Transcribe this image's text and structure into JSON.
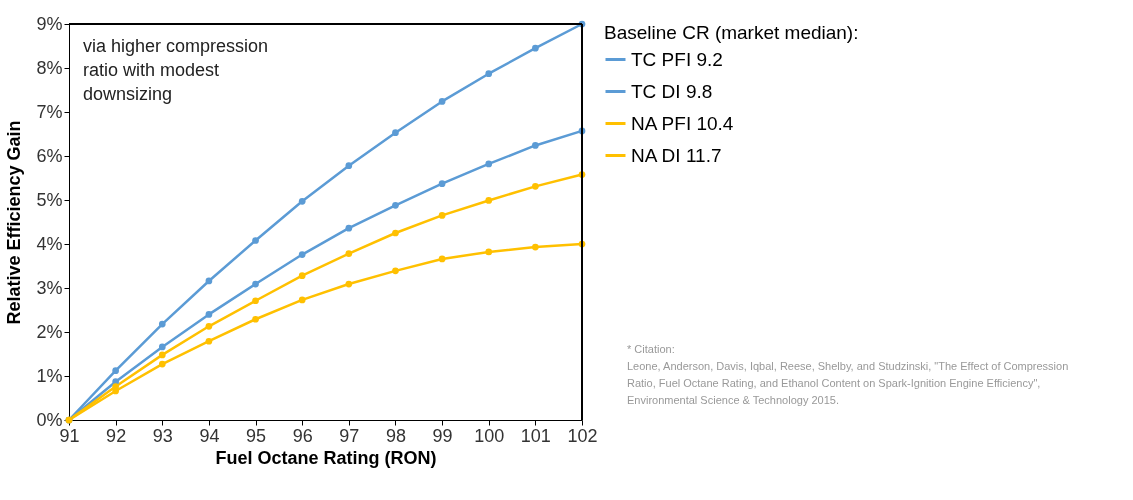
{
  "chart_data": {
    "type": "line",
    "xlabel": "Fuel Octane Rating (RON)",
    "ylabel": "Relative Efficiency Gain",
    "legend_title": "Baseline CR (market median):",
    "x": [
      91,
      92,
      93,
      94,
      95,
      96,
      97,
      98,
      99,
      100,
      101,
      102
    ],
    "series": [
      {
        "name": "TC PFI 9.2",
        "color": "#5b9bd5",
        "values": [
          0,
          1.12,
          2.18,
          3.16,
          4.08,
          4.97,
          5.78,
          6.53,
          7.24,
          7.87,
          8.45,
          9.0
        ]
      },
      {
        "name": "TC DI 9.8",
        "color": "#5b9bd5",
        "values": [
          0,
          0.87,
          1.66,
          2.4,
          3.09,
          3.76,
          4.36,
          4.88,
          5.37,
          5.82,
          6.24,
          6.57
        ]
      },
      {
        "name": "NA PFI 10.4",
        "color": "#ffc000",
        "values": [
          0,
          0.76,
          1.48,
          2.13,
          2.71,
          3.28,
          3.78,
          4.25,
          4.65,
          4.99,
          5.31,
          5.58
        ]
      },
      {
        "name": "NA DI 11.7",
        "color": "#ffc000",
        "values": [
          0,
          0.66,
          1.27,
          1.79,
          2.29,
          2.73,
          3.09,
          3.39,
          3.66,
          3.82,
          3.93,
          4.0
        ]
      }
    ],
    "xlim": [
      91,
      102
    ],
    "xticks": [
      91,
      92,
      93,
      94,
      95,
      96,
      97,
      98,
      99,
      100,
      101,
      102
    ],
    "ylim": [
      0,
      9
    ],
    "yticks": [
      {
        "value": 0,
        "label": "0%"
      },
      {
        "value": 1,
        "label": "1%"
      },
      {
        "value": 2,
        "label": "2%"
      },
      {
        "value": 3,
        "label": "3%"
      },
      {
        "value": 4,
        "label": "4%"
      },
      {
        "value": 5,
        "label": "5%"
      },
      {
        "value": 6,
        "label": "6%"
      },
      {
        "value": 7,
        "label": "7%"
      },
      {
        "value": 8,
        "label": "8%"
      },
      {
        "value": 9,
        "label": "9%"
      }
    ],
    "annotations": [
      "via higher compression ratio with modest downsizing",
      "* Citation:",
      "Leone, Anderson, Davis, Iqbal, Reese, Shelby, and Studzinski, \"The Effect of Compression Ratio, Fuel Octane Rating, and Ethanol Content on Spark-Ignition Engine Efficiency\", Environmental Science & Technology 2015."
    ],
    "grid": false,
    "legend": "right",
    "marker": "circle",
    "line_style": "solid"
  }
}
